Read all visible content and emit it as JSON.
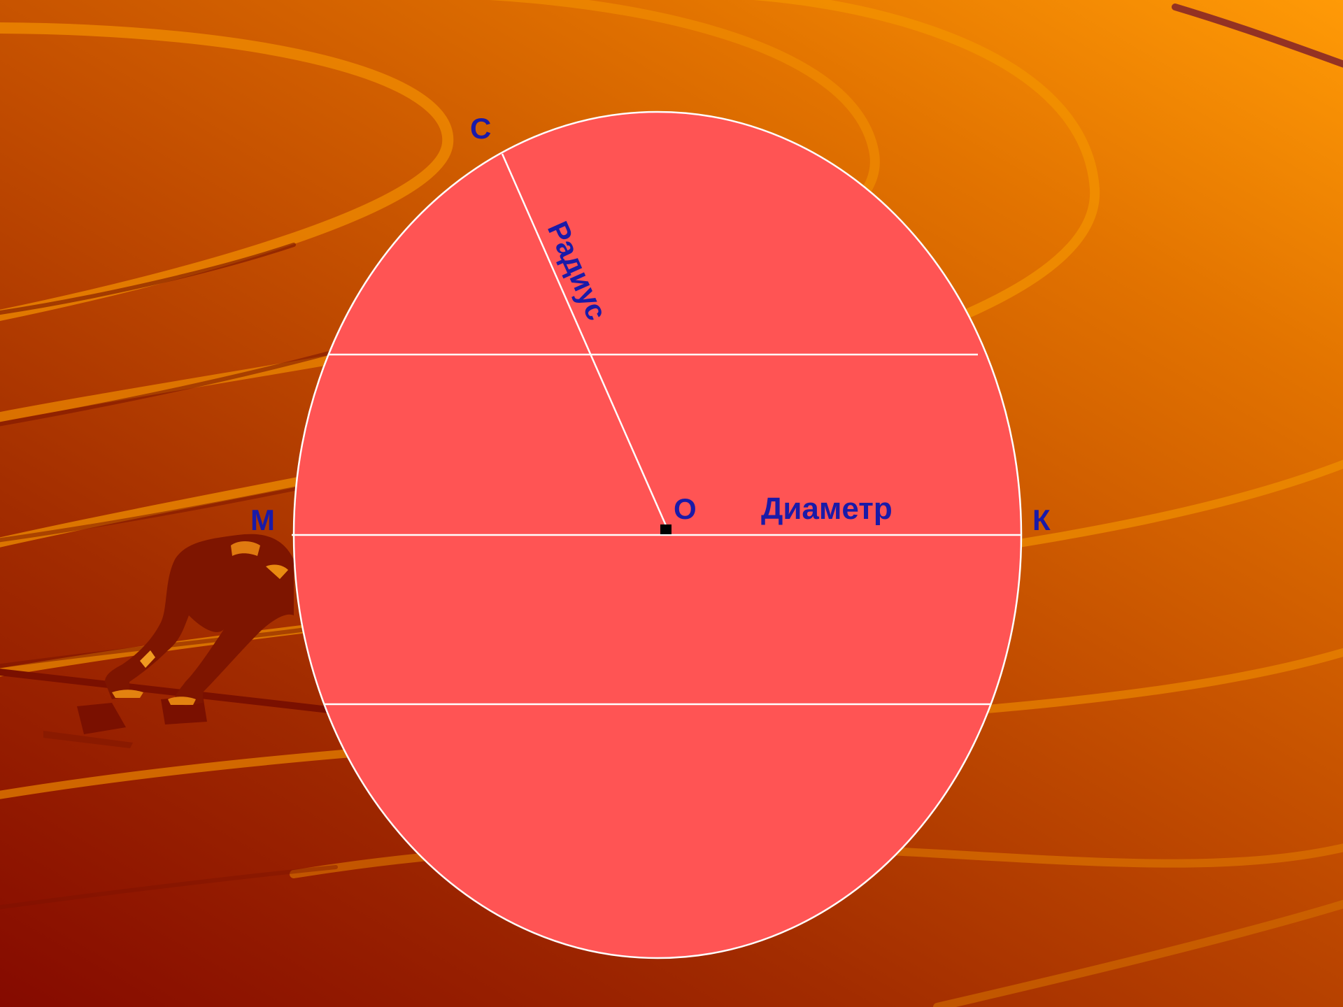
{
  "slide": {
    "labels": {
      "point_c": "С",
      "point_o": "О",
      "point_m": "М",
      "point_k": "К",
      "radius": "Радиус",
      "diameter": "Диаметр"
    },
    "colors": {
      "background_light": "#ff9a06",
      "background_dark": "#850a00",
      "circle_fill": "#ff5454",
      "lines": "#ffffff",
      "label_text": "#1a1aa8",
      "center_marker": "#000000"
    },
    "decoration": {
      "background_art": "running-track-lanes",
      "runner": "sprinter-in-starting-blocks-silhouette"
    }
  }
}
